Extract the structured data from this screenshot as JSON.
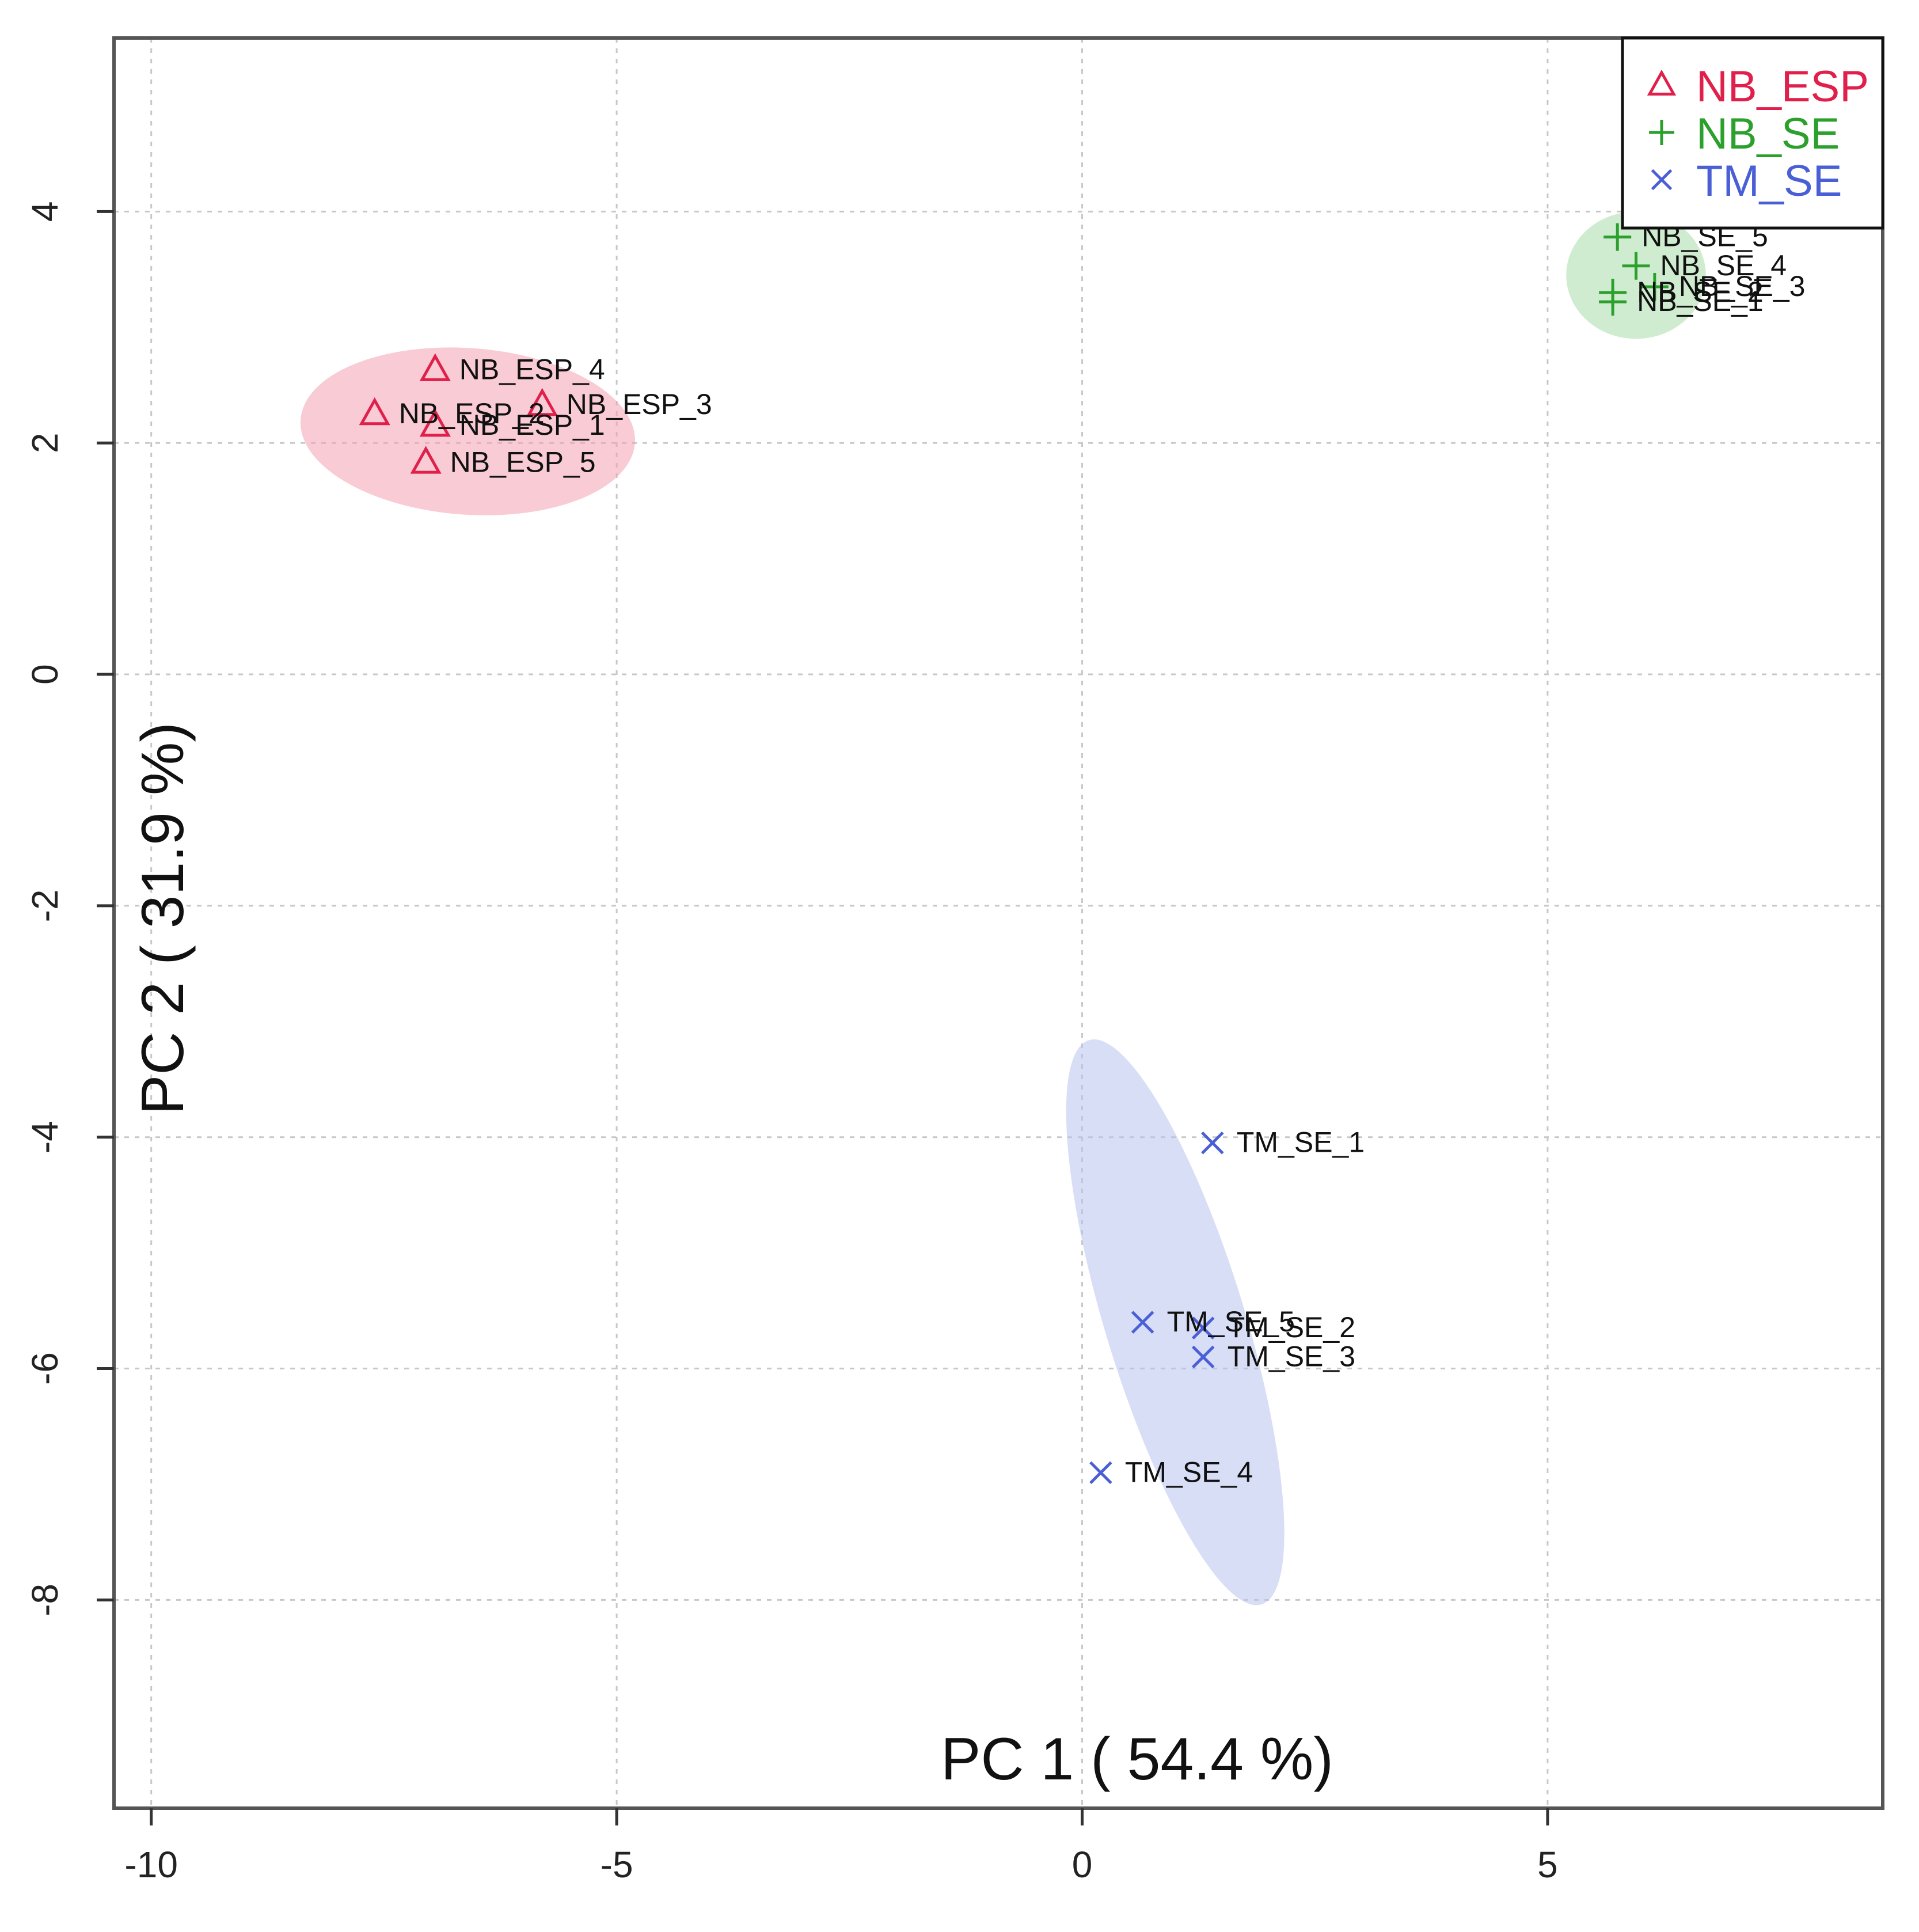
{
  "chart_data": {
    "type": "scatter",
    "title": "",
    "xlabel": "PC 1 ( 54.4 %)",
    "ylabel": "PC 2 ( 31.9 %)",
    "xlim": [
      -10.4,
      8.6
    ],
    "ylim": [
      -9.8,
      5.5
    ],
    "xticks": [
      -10,
      -5,
      0,
      5
    ],
    "yticks": [
      -8,
      -6,
      -4,
      -2,
      0,
      2,
      4
    ],
    "xtick_labels": [
      "-10",
      "-5",
      "0",
      "5"
    ],
    "ytick_labels": [
      "-8",
      "-6",
      "-4",
      "-2",
      "0",
      "2",
      "4"
    ],
    "grid": true,
    "legend_position": "top-right",
    "series": [
      {
        "name": "NB_ESP",
        "color": "#e0204a",
        "fill": "#f2a0b3",
        "marker": "triangle",
        "ellipse": {
          "cx": -6.6,
          "cy": 2.1,
          "rx": 1.8,
          "ry": 0.72,
          "angle": 4
        },
        "points": [
          {
            "label": "NB_ESP_1",
            "x": -6.95,
            "y": 2.15
          },
          {
            "label": "NB_ESP_2",
            "x": -7.6,
            "y": 2.25
          },
          {
            "label": "NB_ESP_3",
            "x": -5.8,
            "y": 2.33
          },
          {
            "label": "NB_ESP_4",
            "x": -6.95,
            "y": 2.63
          },
          {
            "label": "NB_ESP_5",
            "x": -7.05,
            "y": 1.83
          }
        ]
      },
      {
        "name": "NB_SE",
        "color": "#2ca02c",
        "fill": "#a9dca9",
        "marker": "plus",
        "ellipse": {
          "cx": 5.95,
          "cy": 3.45,
          "rx": 0.75,
          "ry": 0.55,
          "angle": 0
        },
        "points": [
          {
            "label": "NB_SE_1",
            "x": 5.7,
            "y": 3.22
          },
          {
            "label": "NB_SE_2",
            "x": 5.7,
            "y": 3.3
          },
          {
            "label": "NB_SE_3",
            "x": 6.15,
            "y": 3.35
          },
          {
            "label": "NB_SE_4",
            "x": 5.95,
            "y": 3.53
          },
          {
            "label": "NB_SE_5",
            "x": 5.75,
            "y": 3.78
          }
        ]
      },
      {
        "name": "TM_SE",
        "color": "#4a5fd6",
        "fill": "#b8c3ee",
        "marker": "cross",
        "ellipse": {
          "cx": 1.0,
          "cy": -5.6,
          "rx": 0.75,
          "ry": 2.55,
          "angle": -17
        },
        "points": [
          {
            "label": "TM_SE_1",
            "x": 1.4,
            "y": -4.05
          },
          {
            "label": "TM_SE_2",
            "x": 1.3,
            "y": -5.65
          },
          {
            "label": "TM_SE_3",
            "x": 1.3,
            "y": -5.9
          },
          {
            "label": "TM_SE_4",
            "x": 0.2,
            "y": -6.9
          },
          {
            "label": "TM_SE_5",
            "x": 0.65,
            "y": -5.6
          }
        ]
      }
    ]
  }
}
